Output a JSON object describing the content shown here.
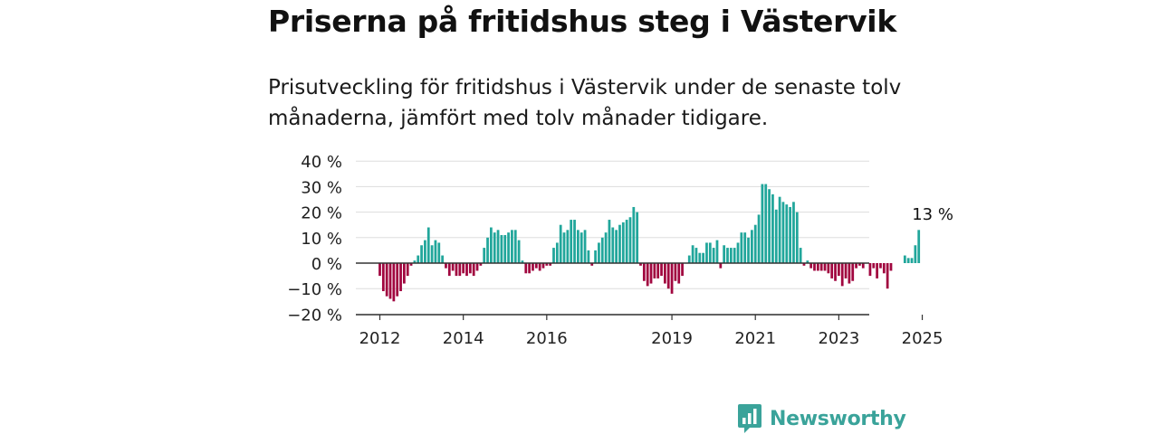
{
  "title": "Priserna på fritidshus steg i Västervik",
  "subtitle": "Prisutveckling för fritidshus i Västervik under de senaste tolv månaderna, jämfört med tolv månader tidigare.",
  "brand": {
    "name": "Newsworthy",
    "logo_icon": "newsworthy-logo-icon"
  },
  "colors": {
    "positive": "#21a69b",
    "negative": "#a1063f",
    "grid": "#dddddd",
    "axis": "#333333"
  },
  "chart_data": {
    "type": "bar",
    "ylim": [
      -20,
      40
    ],
    "y_ticks": [
      40,
      30,
      20,
      10,
      0,
      -10,
      -20
    ],
    "y_tick_labels": [
      "40 %",
      "30 %",
      "20 %",
      "10 %",
      "0 %",
      "−10 %",
      "−20 %"
    ],
    "x_tick_labels": [
      {
        "label": "2012",
        "at": "2012-01"
      },
      {
        "label": "2014",
        "at": "2014-01"
      },
      {
        "label": "2016",
        "at": "2016-01"
      },
      {
        "label": "2019",
        "at": "2019-01"
      },
      {
        "label": "2021",
        "at": "2021-01"
      },
      {
        "label": "2023",
        "at": "2023-01"
      },
      {
        "label": "2025",
        "at": "2025-01"
      }
    ],
    "annotation": {
      "text": "13 %",
      "at": "2025-04"
    },
    "start": "2012-01",
    "values": [
      -5,
      -11,
      -13,
      -14,
      -15,
      -13,
      -11,
      -8,
      -5,
      -1,
      1,
      3,
      7,
      9,
      14,
      7,
      9,
      8,
      3,
      -2,
      -5,
      -3,
      -5,
      -5,
      -4,
      -5,
      -4,
      -5,
      -3,
      -1,
      6,
      10,
      14,
      12,
      13,
      11,
      11,
      12,
      13,
      13,
      9,
      1,
      -4,
      -4,
      -3,
      -2,
      -3,
      -2,
      -1,
      -1,
      6,
      8,
      15,
      12,
      13,
      17,
      17,
      13,
      12,
      13,
      5,
      -1,
      5,
      8,
      10,
      12,
      17,
      14,
      13,
      15,
      16,
      17,
      18,
      22,
      20,
      -1,
      -7,
      -9,
      -8,
      -6,
      -6,
      -5,
      -8,
      -10,
      -12,
      -7,
      -8,
      -5,
      0,
      3,
      7,
      6,
      4,
      4,
      8,
      8,
      6,
      9,
      -2,
      7,
      6,
      6,
      6,
      8,
      12,
      12,
      10,
      13,
      15,
      19,
      31,
      31,
      29,
      27,
      21,
      26,
      24,
      23,
      22,
      24,
      20,
      6,
      -1,
      1,
      -2,
      -3,
      -3,
      -3,
      -3,
      -4,
      -6,
      -7,
      -5,
      -9,
      -6,
      -8,
      -7,
      -2,
      -1,
      -2,
      0,
      -5,
      -2,
      -6,
      -2,
      -4,
      -10,
      -3,
      0,
      0,
      0,
      3,
      2,
      2,
      7,
      13
    ]
  }
}
